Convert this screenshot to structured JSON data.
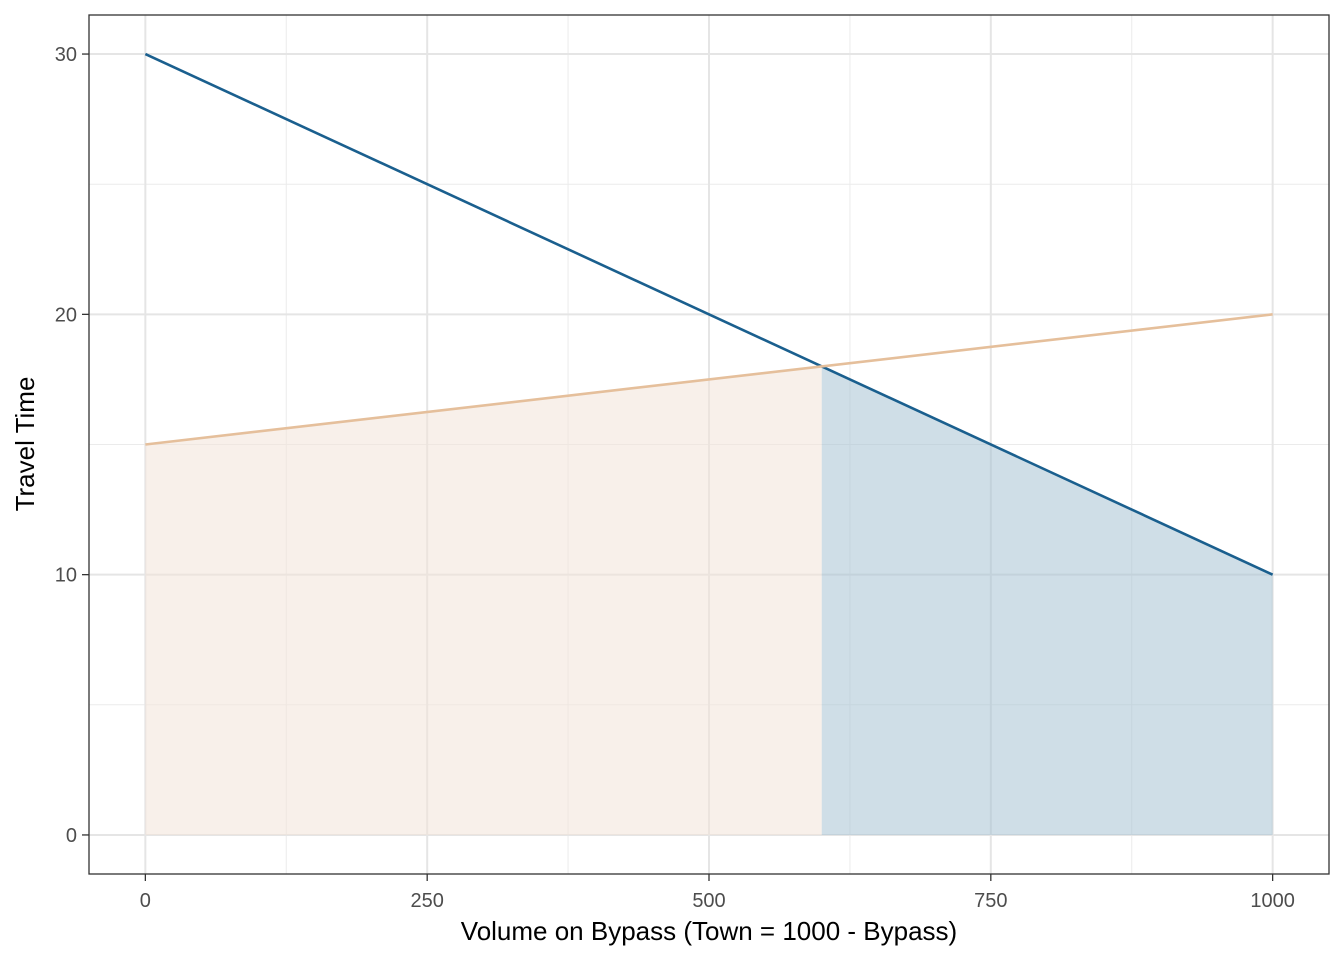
{
  "chart_data": {
    "type": "line",
    "title": "",
    "xlabel": "Volume on Bypass (Town = 1000 - Bypass)",
    "ylabel": "Travel Time",
    "xlim": [
      -50,
      1050
    ],
    "ylim": [
      -1.5,
      31.5
    ],
    "x_ticks": [
      0,
      250,
      500,
      750,
      1000
    ],
    "y_ticks": [
      0,
      10,
      20,
      30
    ],
    "x_minor_ticks": [
      125,
      375,
      625,
      875
    ],
    "y_minor_ticks": [
      5,
      15,
      25
    ],
    "grid": true,
    "legend": "none",
    "series": [
      {
        "x": [
          0,
          1000
        ],
        "y": [
          30,
          10
        ],
        "color": "#1a5f8e"
      },
      {
        "x": [
          0,
          1000
        ],
        "y": [
          15,
          20
        ],
        "color": "#e5bf9b"
      }
    ],
    "areas": [
      {
        "x": [
          0,
          600
        ],
        "y": [
          15,
          18
        ],
        "color": "#f3e4d9",
        "opacity": 0.55
      },
      {
        "x": [
          600,
          1000
        ],
        "y": [
          18,
          10
        ],
        "color": "#a7c2d4",
        "opacity": 0.55
      }
    ]
  }
}
